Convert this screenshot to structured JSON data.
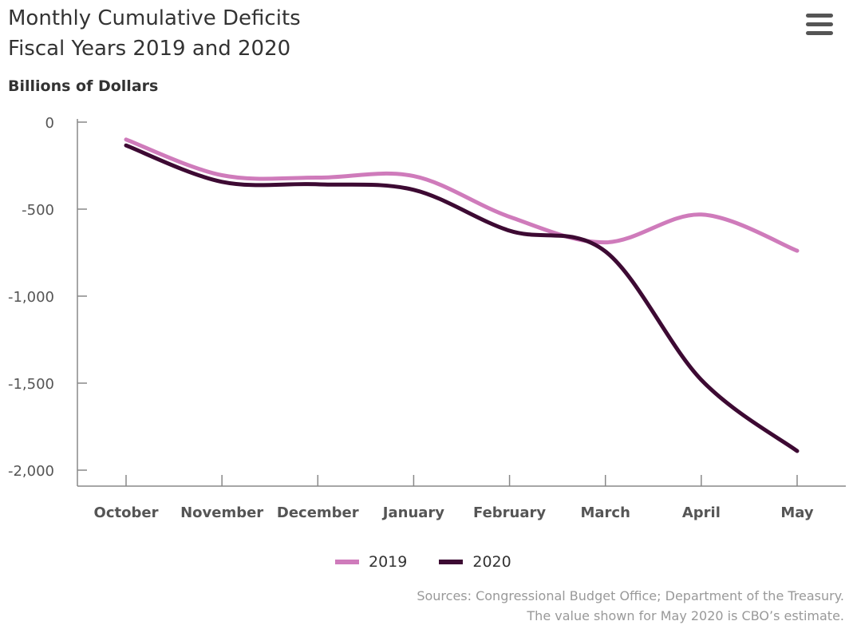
{
  "title_line1": "Monthly Cumulative Deficits",
  "title_line2": "Fiscal Years 2019 and 2020",
  "menu_icon": "hamburger-menu-icon",
  "chart_data": {
    "type": "line",
    "title": "Monthly Cumulative Deficits Fiscal Years 2019 and 2020",
    "ylabel": "Billions of Dollars",
    "xlabel": "",
    "categories": [
      "October",
      "November",
      "December",
      "January",
      "February",
      "March",
      "April",
      "May"
    ],
    "ylim": [
      -2000,
      0
    ],
    "yticks": [
      0,
      -500,
      -1000,
      -1500,
      -2000
    ],
    "ytick_labels": [
      "0",
      "-500",
      "-1,000",
      "-1,500",
      "-2,000"
    ],
    "series": [
      {
        "name": "2019",
        "color": "#cf7bbb",
        "values": [
          -100,
          -305,
          -319,
          -310,
          -544,
          -691,
          -531,
          -739
        ]
      },
      {
        "name": "2020",
        "color": "#3d0a33",
        "values": [
          -134,
          -343,
          -357,
          -389,
          -624,
          -743,
          -1481,
          -1890
        ]
      }
    ],
    "legend": "bottom-center",
    "grid": false
  },
  "sources_line1": "Sources: Congressional Budget Office; Department of the Treasury.",
  "sources_line2": "The value shown for May 2020 is CBO’s estimate."
}
